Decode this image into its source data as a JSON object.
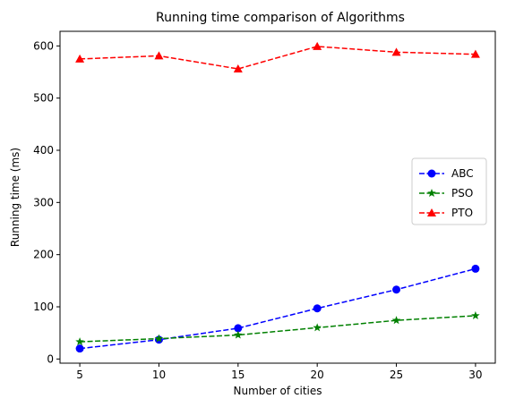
{
  "chart_data": {
    "type": "line",
    "title": "Running time comparison of Algorithms",
    "xlabel": "Number of cities",
    "ylabel": "Running time (ms)",
    "x": [
      5,
      10,
      15,
      20,
      25,
      30
    ],
    "xticks": [
      5,
      10,
      15,
      20,
      25,
      30
    ],
    "yticks": [
      0,
      100,
      200,
      300,
      400,
      500,
      600
    ],
    "xlim": [
      3.75,
      31.25
    ],
    "ylim": [
      -8,
      628
    ],
    "grid": false,
    "legend_position": "center-right",
    "series": [
      {
        "name": "ABC",
        "color": "#0000ff",
        "marker": "circle",
        "line_style": "dashed",
        "values": [
          20,
          37,
          59,
          97,
          133,
          173
        ]
      },
      {
        "name": "PSO",
        "color": "#008000",
        "marker": "star",
        "line_style": "dashed",
        "values": [
          33,
          39,
          46,
          60,
          74,
          83
        ]
      },
      {
        "name": "PTO",
        "color": "#ff0000",
        "marker": "triangle",
        "line_style": "dashed",
        "values": [
          575,
          581,
          556,
          599,
          588,
          584
        ]
      }
    ]
  }
}
